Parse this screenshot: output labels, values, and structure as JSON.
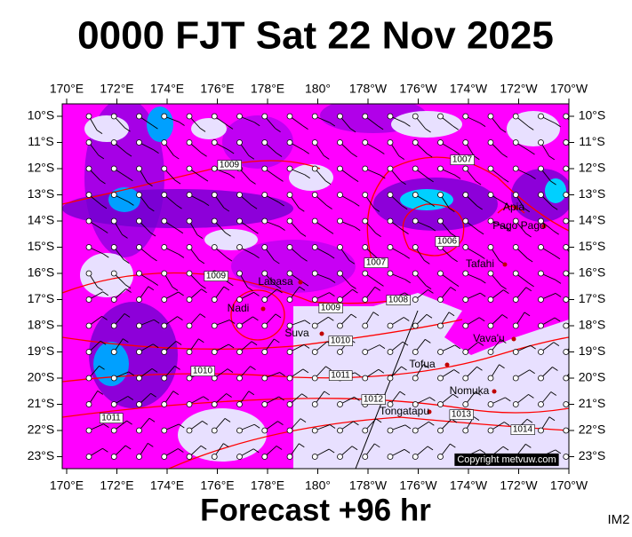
{
  "title": "0000 FJT Sat 22 Nov 2025",
  "subtitle": "Forecast +96 hr",
  "corner_label": "IM2",
  "copyright": "Copyright metvuw.com",
  "lon_labels": [
    "170°E",
    "172°E",
    "174°E",
    "176°E",
    "178°E",
    "180°",
    "178°W",
    "176°W",
    "174°W",
    "172°W",
    "170°W"
  ],
  "lat_labels": [
    "10°S",
    "11°S",
    "12°S",
    "13°S",
    "14°S",
    "15°S",
    "16°S",
    "17°S",
    "18°S",
    "19°S",
    "20°S",
    "21°S",
    "22°S",
    "23°S"
  ],
  "places": [
    "Labasa",
    "Nadi",
    "Suva",
    "Apia",
    "Pago Pago",
    "Tafahi",
    "Vava'u",
    "Tofua",
    "Nomuka",
    "Tongatapu"
  ],
  "isobar_labels": [
    "1009",
    "1009",
    "1009",
    "1008",
    "1007",
    "1006",
    "1007",
    "1010",
    "1010",
    "1011",
    "1012",
    "1013",
    "1014",
    "1011"
  ]
}
